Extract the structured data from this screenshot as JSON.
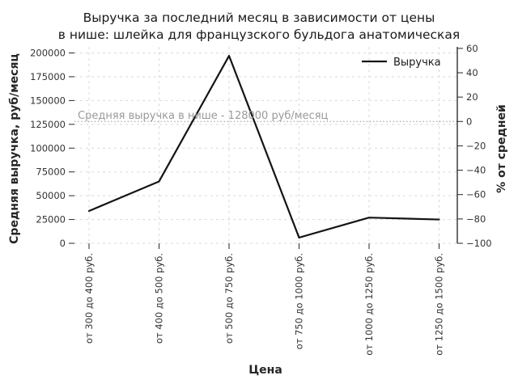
{
  "chart_data": {
    "type": "line",
    "title_lines": [
      "Выручка за последний месяц в зависимости от цены",
      "в нише: шлейка для французского бульдога анатомическая"
    ],
    "xlabel": "Цена",
    "ylabel_left": "Средняя выручка, руб/месяц",
    "ylabel_right": "% от средней",
    "categories": [
      "от 300 до 400 руб.",
      "от 400 до 500 руб.",
      "от 500 до 750 руб.",
      "от 750 до 1000 руб.",
      "от 1000 до 1250 руб.",
      "от 1250 до 1500 руб."
    ],
    "series": [
      {
        "name": "Выручка",
        "values": [
          34000,
          65000,
          197000,
          6000,
          27000,
          25000
        ]
      }
    ],
    "average_line": {
      "value": 128000,
      "label": "Средняя выручка в нише - 128000 руб/месяц"
    },
    "y_left_ticks": [
      0,
      25000,
      50000,
      75000,
      100000,
      125000,
      150000,
      175000,
      200000
    ],
    "y_right_ticks": [
      -100,
      -80,
      -60,
      -40,
      -20,
      0,
      20,
      40,
      60
    ],
    "ylim_left": [
      0,
      206000
    ],
    "ylim_right": [
      -100,
      61
    ],
    "grid": true,
    "legend": {
      "position": "upper-right",
      "frame": false
    },
    "colors": {
      "line": "#141414",
      "grid": "#d9d9d9",
      "average_line": "#b0b0b0",
      "annotation": "#9a9a9a",
      "spine": "#1f1f1f",
      "background": "#ffffff"
    }
  }
}
